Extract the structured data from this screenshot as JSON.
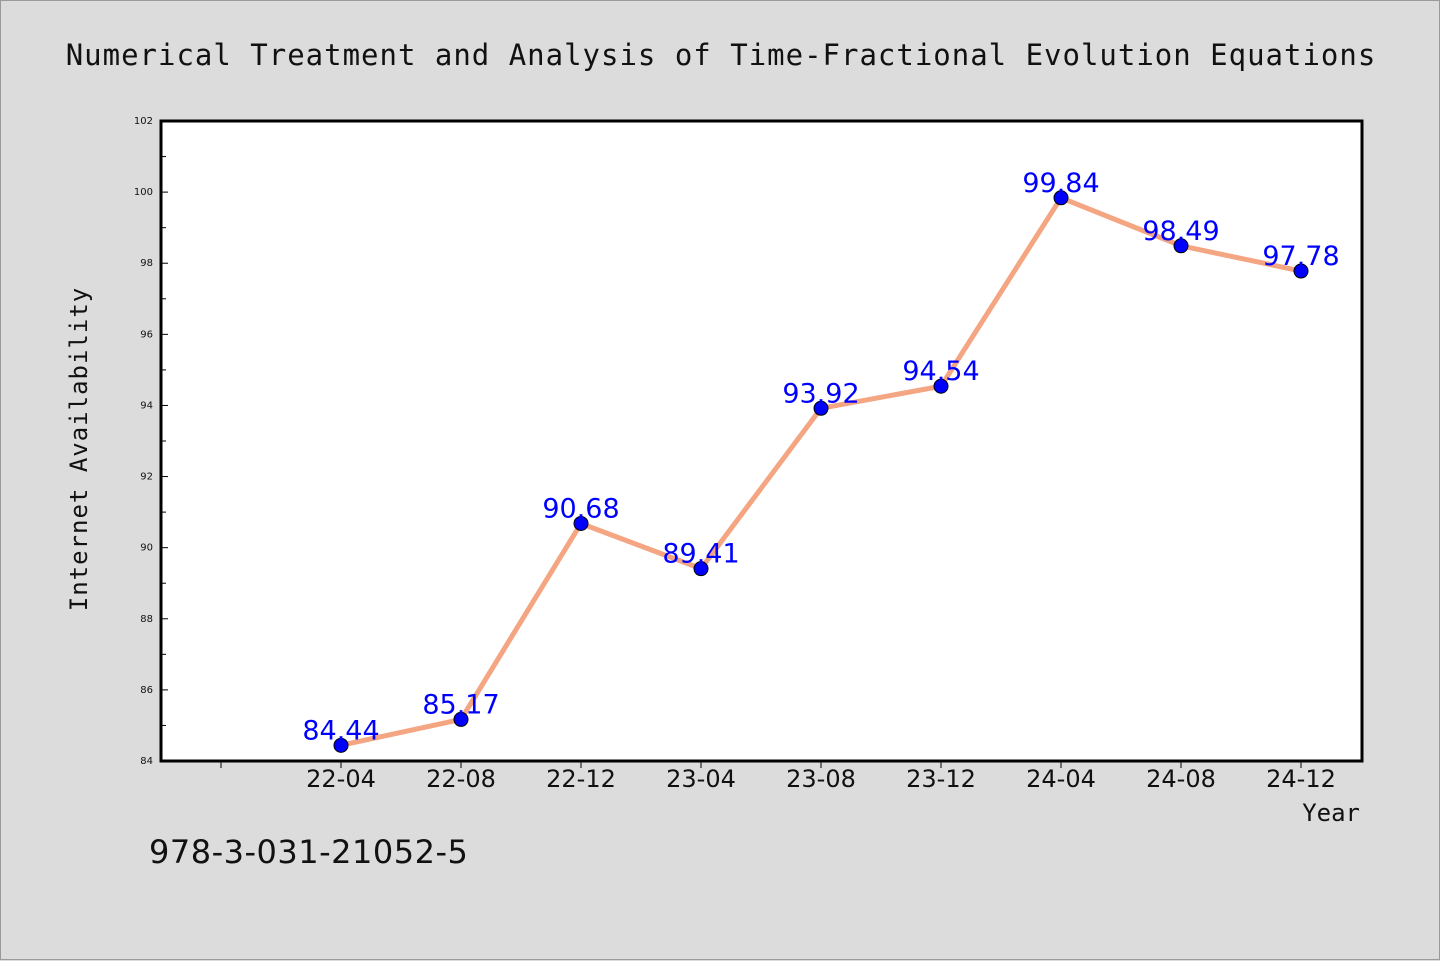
{
  "chart_data": {
    "type": "line",
    "title": "Numerical Treatment and Analysis of Time-Fractional Evolution Equations",
    "xlabel": "Year",
    "ylabel": "Internet Availability",
    "categories": [
      "22-04",
      "22-08",
      "22-12",
      "23-04",
      "23-08",
      "23-12",
      "24-04",
      "24-08",
      "24-12"
    ],
    "series": [
      {
        "values": [
          84.44,
          85.17,
          90.68,
          89.41,
          93.92,
          94.54,
          99.84,
          98.49,
          97.78
        ],
        "data_labels": [
          "84.44",
          "85.17",
          "90.68",
          "89.41",
          "93.92",
          "94.54",
          "99.84",
          "98.49",
          "97.78"
        ]
      }
    ],
    "ylim": [
      84,
      102
    ],
    "yticks": [
      "84",
      "86",
      "88",
      "90",
      "92",
      "94",
      "96",
      "98",
      "100",
      "102"
    ],
    "grid": false,
    "colors": {
      "line": "#f4a582",
      "marker": "#0000ff",
      "label": "#0000ff"
    }
  },
  "footer": {
    "isbn": "978-3-031-21052-5"
  }
}
